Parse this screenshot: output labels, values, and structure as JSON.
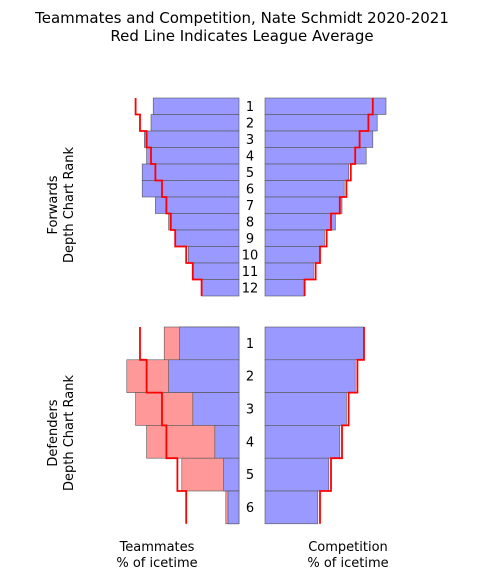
{
  "chart_data": {
    "type": "bar",
    "title": "Teammates and Competition, Nate Schmidt 2020-2021",
    "subtitle": "Red Line Indicates League Average",
    "xlabel_left": "Teammates\n% of icetime",
    "xlabel_right": "Competition\n% of icetime",
    "colors": {
      "blue": "#9999ff",
      "pink": "#ff9999",
      "league_line": "#ff0000",
      "edge": "#555555"
    },
    "forwards": {
      "ylabel": "Forwards\nDepth Chart Rank",
      "ranks": [
        "1",
        "2",
        "3",
        "4",
        "5",
        "6",
        "7",
        "8",
        "9",
        "10",
        "11",
        "12"
      ],
      "teammates": [
        39,
        40,
        43,
        42,
        44,
        44,
        38,
        32,
        29,
        23,
        21,
        17
      ],
      "teammates_league": [
        47,
        45,
        42,
        40,
        38,
        35,
        33,
        31,
        29,
        24,
        21,
        17
      ],
      "competition": [
        55,
        51,
        49,
        46,
        38,
        36,
        35,
        32,
        27,
        25,
        22,
        18
      ],
      "competition_league": [
        49,
        47,
        43,
        41,
        39,
        37,
        34,
        30,
        28,
        25,
        23,
        18
      ]
    },
    "defenders": {
      "ylabel": "Defenders\nDepth Chart Rank",
      "ranks": [
        "1",
        "2",
        "3",
        "4",
        "5",
        "6"
      ],
      "teammates_pink": [
        34,
        51,
        47,
        42,
        26,
        6
      ],
      "teammates_blue": [
        27,
        32,
        21,
        11,
        7,
        5
      ],
      "teammates_league": [
        45,
        42,
        35,
        33,
        28,
        24
      ],
      "competition": [
        45,
        41,
        37,
        34,
        29,
        24
      ],
      "competition_league": [
        45,
        42,
        38,
        35,
        30,
        25
      ]
    }
  }
}
